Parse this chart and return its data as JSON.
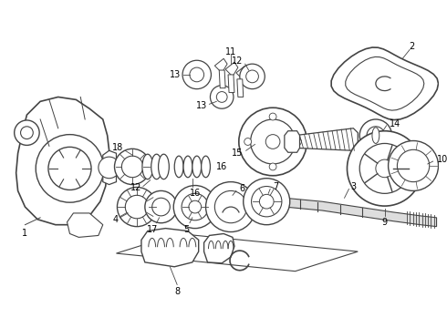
{
  "bg_color": "#ffffff",
  "line_color": "#444444",
  "label_color": "#000000",
  "figsize": [
    4.9,
    3.6
  ],
  "dpi": 100,
  "font_size": 7
}
